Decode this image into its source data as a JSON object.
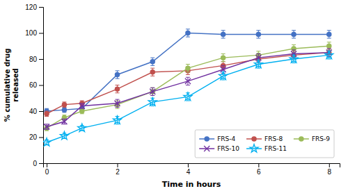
{
  "chart_data": {
    "type": "line",
    "xlabel": "Time in hours",
    "ylabel": "% cumulative drug\nreleased",
    "xlim": [
      -0.1,
      8.3
    ],
    "ylim": [
      0,
      120
    ],
    "xticks": [
      0,
      2,
      4,
      6,
      8
    ],
    "yticks": [
      0,
      20,
      40,
      60,
      80,
      100,
      120
    ],
    "grid": false,
    "legend": "lower right",
    "x": [
      0,
      0.5,
      1,
      2,
      3,
      4,
      5,
      6,
      7,
      8
    ],
    "series": [
      {
        "name": "FRS-4",
        "color": "#4472C4",
        "marker": "circle",
        "values": [
          40,
          41,
          42,
          68,
          78,
          100,
          99,
          99,
          99,
          99
        ],
        "yerr": [
          2,
          2,
          2,
          3,
          3,
          3,
          3,
          3,
          3,
          3
        ]
      },
      {
        "name": "FRS-8",
        "color": "#C0504D",
        "marker": "circle",
        "values": [
          38,
          45,
          46,
          57,
          70,
          71,
          75,
          80,
          83,
          85
        ],
        "yerr": [
          2,
          2,
          2,
          3,
          3,
          3,
          3,
          3,
          3,
          3
        ]
      },
      {
        "name": "FRS-9",
        "color": "#9BBB59",
        "marker": "circle",
        "values": [
          27,
          35,
          40,
          45,
          55,
          73,
          81,
          83,
          88,
          90
        ],
        "yerr": [
          2,
          2,
          2,
          3,
          3,
          3,
          3,
          3,
          3,
          3
        ]
      },
      {
        "name": "FRS-10",
        "color": "#7030A0",
        "marker": "x",
        "values": [
          28,
          32,
          44,
          46,
          55,
          63,
          72,
          81,
          84,
          85
        ],
        "yerr": [
          2,
          2,
          2,
          3,
          3,
          3,
          3,
          3,
          3,
          3
        ]
      },
      {
        "name": "FRS-11",
        "color": "#00B0F0",
        "marker": "star",
        "values": [
          16,
          21,
          27,
          33,
          47,
          51,
          67,
          76,
          80,
          83
        ],
        "yerr": [
          2,
          2,
          2,
          3,
          3,
          3,
          3,
          3,
          3,
          3
        ]
      }
    ]
  }
}
